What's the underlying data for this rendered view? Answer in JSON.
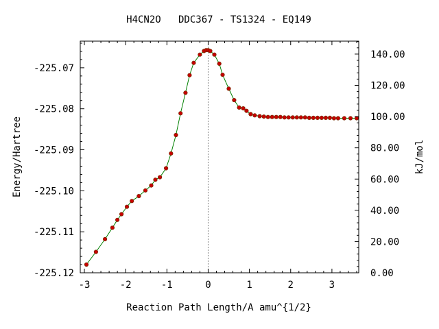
{
  "chart_data": {
    "type": "line",
    "title": "H4CN2O   DDC367 - TS1324 - EQ149",
    "xlabel": "Reaction Path Length/A amu^{1/2}",
    "ylabel": "Energy/Hartree",
    "y2label": "kJ/mol",
    "xlim": [
      -3.1,
      3.65
    ],
    "ylim": [
      -225.12,
      -225.0635
    ],
    "y2lim": [
      0,
      148.3
    ],
    "x_ticks": [
      -3,
      -2,
      -1,
      0,
      1,
      2,
      3
    ],
    "x_tick_labels": [
      "-3",
      "-2",
      "-1",
      "0",
      "1",
      "2",
      "3"
    ],
    "y_ticks": [
      -225.07,
      -225.08,
      -225.09,
      -225.1,
      -225.11,
      -225.12
    ],
    "y_tick_labels": [
      "-225.07",
      "-225.08",
      "-225.09",
      "-225.10",
      "-225.11",
      "-225.12"
    ],
    "y2_ticks": [
      140,
      120,
      100,
      80,
      60,
      40,
      20,
      0
    ],
    "y2_tick_labels": [
      "140.00",
      "120.00",
      "100.00",
      "80.00",
      "60.00",
      "40.00",
      "20.00",
      "0.00"
    ],
    "ts_marker_x": 0,
    "grid": false,
    "colors": {
      "line": "#008000",
      "marker": "#c80000",
      "marker_edge": "#7a2a00",
      "ts_line": "#888888",
      "axis": "#000000"
    },
    "series": [
      {
        "x": [
          -2.95,
          -2.72,
          -2.5,
          -2.32,
          -2.2,
          -2.1,
          -1.97,
          -1.85,
          -1.68,
          -1.52,
          -1.38,
          -1.28,
          -1.17,
          -1.02,
          -0.9,
          -0.78,
          -0.67,
          -0.55,
          -0.45,
          -0.35,
          -0.2,
          -0.1,
          -0.05,
          0.0,
          0.05,
          0.15,
          0.27,
          0.35,
          0.5,
          0.63,
          0.75,
          0.85,
          0.93,
          1.03,
          1.13,
          1.25,
          1.35,
          1.45,
          1.55,
          1.65,
          1.75,
          1.85,
          1.95,
          2.05,
          2.15,
          2.25,
          2.35,
          2.45,
          2.55,
          2.65,
          2.75,
          2.85,
          2.95,
          3.05,
          3.15,
          3.3,
          3.45,
          3.6
        ],
        "y": [
          -225.118,
          -225.1149,
          -225.1118,
          -225.109,
          -225.1071,
          -225.1057,
          -225.1039,
          -225.1025,
          -225.1013,
          -225.0999,
          -225.0987,
          -225.0973,
          -225.0967,
          -225.0945,
          -225.0909,
          -225.0864,
          -225.0811,
          -225.0761,
          -225.0718,
          -225.0688,
          -225.0668,
          -225.0659,
          -225.0657,
          -225.0657,
          -225.0659,
          -225.0668,
          -225.069,
          -225.0717,
          -225.0751,
          -225.0779,
          -225.0797,
          -225.0799,
          -225.0805,
          -225.0813,
          -225.0816,
          -225.0818,
          -225.0819,
          -225.082,
          -225.082,
          -225.082,
          -225.082,
          -225.0821,
          -225.0821,
          -225.0821,
          -225.0821,
          -225.0821,
          -225.0821,
          -225.0822,
          -225.0822,
          -225.0822,
          -225.0822,
          -225.0822,
          -225.0822,
          -225.0823,
          -225.0823,
          -225.0823,
          -225.0823,
          -225.0823
        ]
      }
    ]
  }
}
